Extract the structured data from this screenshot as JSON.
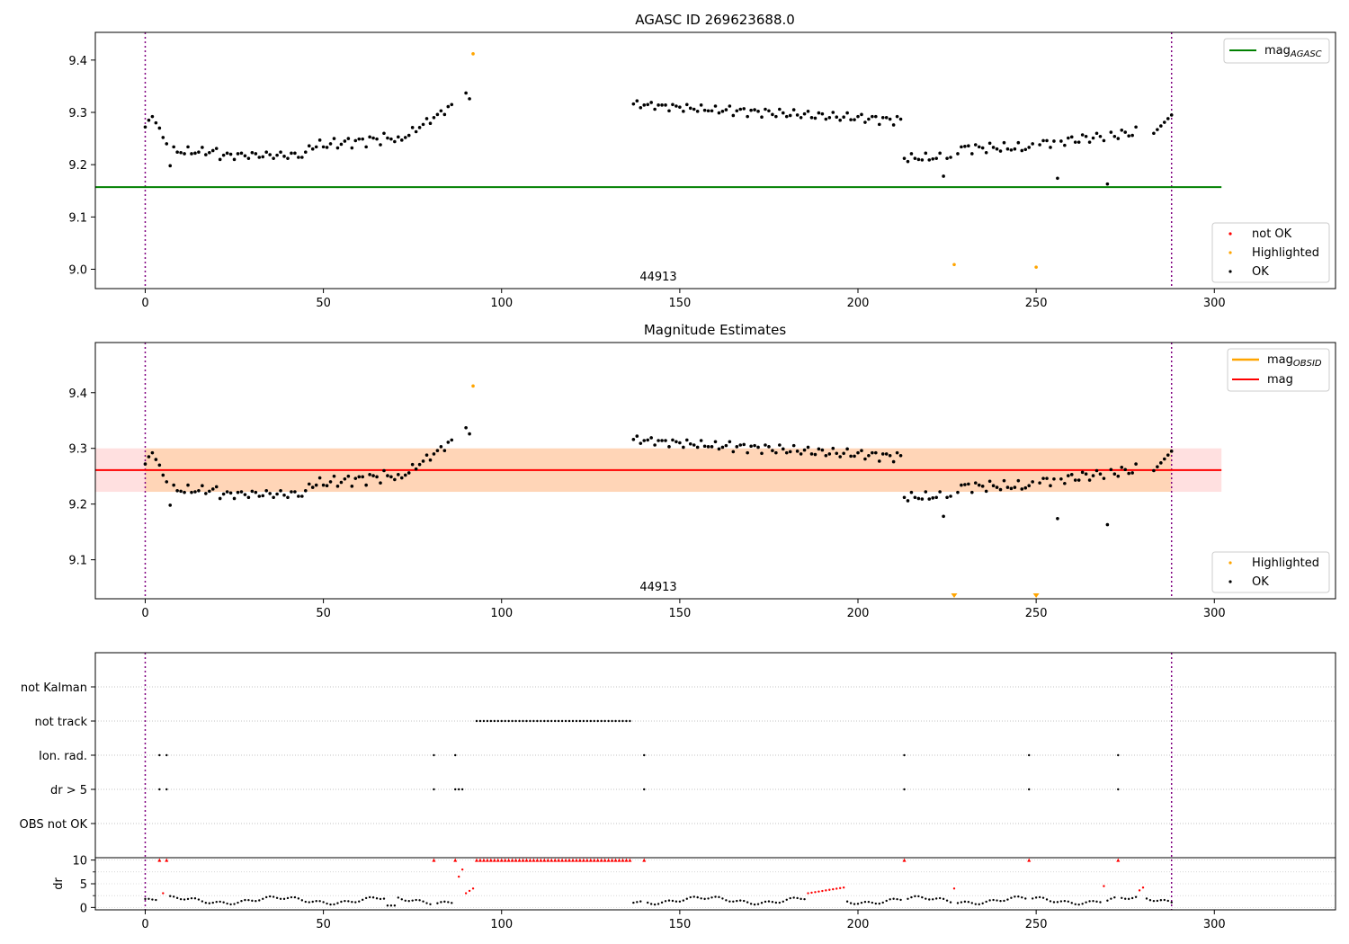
{
  "chart_data": [
    {
      "type": "scatter",
      "title": "AGASC ID 269623688.0",
      "xlim": [
        -14,
        334
      ],
      "ylim": [
        8.963,
        9.453
      ],
      "x_ticks": [
        0,
        50,
        100,
        150,
        200,
        250,
        300
      ],
      "y_ticks": [
        9.0,
        9.1,
        9.2,
        9.3,
        9.4
      ],
      "grid": false,
      "legend_placement": [
        "top-right",
        "bottom-right"
      ],
      "vlines": [
        0,
        288
      ],
      "hline": {
        "name_main": "mag",
        "name_sub": "AGASC",
        "y": 9.157,
        "x": [
          -14,
          302
        ],
        "color": "#008000"
      },
      "annotation": {
        "text": "44913",
        "x": 144,
        "y": 8.98
      },
      "series": [
        {
          "name": "not OK",
          "color": "#ff0000",
          "x": [],
          "y": []
        },
        {
          "name": "Highlighted",
          "color": "#ffa500",
          "x": [
            92,
            227,
            250
          ],
          "y": [
            9.412,
            9.009,
            9.004
          ]
        },
        {
          "name": "OK",
          "color": "#000000"
        }
      ],
      "legend_top": [
        "mag_AGASC"
      ],
      "legend_bottom": [
        "not OK",
        "Highlighted",
        "OK"
      ]
    },
    {
      "type": "scatter",
      "title": "Magnitude Estimates",
      "xlim": [
        -14,
        334
      ],
      "ylim": [
        9.03,
        9.49
      ],
      "x_ticks": [
        0,
        50,
        100,
        150,
        200,
        250,
        300
      ],
      "y_ticks": [
        9.1,
        9.2,
        9.3,
        9.4
      ],
      "grid": false,
      "legend_placement": [
        "top-right",
        "bottom-right"
      ],
      "vlines": [
        0,
        288
      ],
      "mag_line": {
        "name": "mag",
        "y": 9.261,
        "x": [
          -14,
          302
        ],
        "color": "#ff0000"
      },
      "mag_band": {
        "y": [
          9.222,
          9.3
        ],
        "color": "#ff0000"
      },
      "obsid_band": {
        "name_main": "mag",
        "name_sub": "OBSID",
        "y": [
          9.222,
          9.3
        ],
        "x": [
          0,
          288
        ],
        "color": "#ffa500"
      },
      "annotation": {
        "text": "44913",
        "x": 144,
        "y": 9.041
      },
      "series": [
        {
          "name": "Highlighted",
          "color": "#ffa500",
          "x": [
            92
          ],
          "y": [
            9.412
          ]
        },
        {
          "name": "OK",
          "color": "#000000"
        }
      ],
      "offscale_markers": {
        "x": [
          227,
          250
        ],
        "color": "#ffa500"
      },
      "legend_top": [
        "mag_OBSID",
        "mag"
      ],
      "legend_bottom": [
        "Highlighted",
        "OK"
      ]
    },
    {
      "type": "scatter",
      "title": "",
      "xlim": [
        -14,
        334
      ],
      "categories": [
        "not Kalman",
        "not track",
        "Ion. rad.",
        "dr > 5",
        "OBS not OK"
      ],
      "vlines": [
        0,
        288
      ],
      "flags": {
        "not Kalman": [],
        "not track": "93-136",
        "Ion. rad.": [
          4,
          6,
          81,
          87,
          140,
          213,
          248,
          273
        ],
        "dr > 5": [
          4,
          6,
          81,
          87,
          88,
          89,
          140,
          213,
          248,
          273
        ],
        "OBS not OK": []
      }
    },
    {
      "type": "scatter",
      "title": "",
      "ylabel": "dr",
      "xlim": [
        -14,
        334
      ],
      "ylim": [
        -0.5,
        10.5
      ],
      "y_ticks": [
        0,
        5,
        10
      ],
      "x_ticks": [
        0,
        50,
        100,
        150,
        200,
        250,
        300
      ],
      "clip_value": 10,
      "colors": {
        "ok": "#000000",
        "bad": "#ff0000"
      }
    }
  ]
}
